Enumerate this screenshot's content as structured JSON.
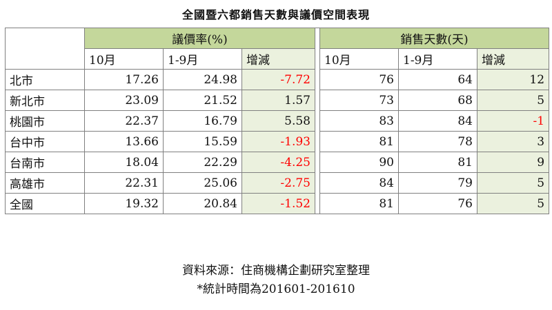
{
  "title": "全國暨六都銷售天數與議價空間表現",
  "groups": {
    "discount": "議價率(%)",
    "days": "銷售天數(天)"
  },
  "subheaders": {
    "discount": [
      "10月",
      "1-9月",
      "增減"
    ],
    "days": [
      "10月",
      "1-9月",
      "增減"
    ]
  },
  "rows": [
    {
      "city": "北市",
      "d_oct": "17.26",
      "d_jan_sep": "24.98",
      "d_change": "-7.72",
      "s_oct": "76",
      "s_jan_sep": "64",
      "s_change": "12"
    },
    {
      "city": "新北市",
      "d_oct": "23.09",
      "d_jan_sep": "21.52",
      "d_change": "1.57",
      "s_oct": "73",
      "s_jan_sep": "68",
      "s_change": "5"
    },
    {
      "city": "桃園市",
      "d_oct": "22.37",
      "d_jan_sep": "16.79",
      "d_change": "5.58",
      "s_oct": "83",
      "s_jan_sep": "84",
      "s_change": "-1"
    },
    {
      "city": "台中市",
      "d_oct": "13.66",
      "d_jan_sep": "15.59",
      "d_change": "-1.93",
      "s_oct": "81",
      "s_jan_sep": "78",
      "s_change": "3"
    },
    {
      "city": "台南市",
      "d_oct": "18.04",
      "d_jan_sep": "22.29",
      "d_change": "-4.25",
      "s_oct": "90",
      "s_jan_sep": "81",
      "s_change": "9"
    },
    {
      "city": "高雄市",
      "d_oct": "22.31",
      "d_jan_sep": "25.06",
      "d_change": "-2.75",
      "s_oct": "84",
      "s_jan_sep": "79",
      "s_change": "5"
    },
    {
      "city": "全國",
      "d_oct": "19.32",
      "d_jan_sep": "20.84",
      "d_change": "-1.52",
      "s_oct": "81",
      "s_jan_sep": "76",
      "s_change": "5"
    }
  ],
  "footer": {
    "source": "資料來源：住商機構企劃研究室整理",
    "period": "*統計時間為201601-201610"
  },
  "colors": {
    "header_green": "#c4d79b",
    "light_green": "#ebf1de",
    "negative": "#ff0000"
  }
}
